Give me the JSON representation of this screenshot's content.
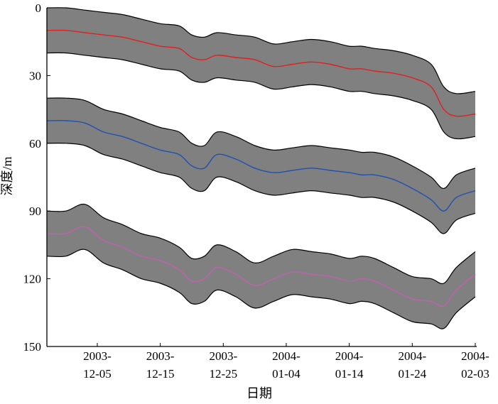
{
  "chart_data": {
    "type": "line",
    "xlabel": "日期",
    "ylabel": "深度/m",
    "ylim": [
      0,
      150
    ],
    "y_inverted": true,
    "yticks": [
      0,
      30,
      60,
      90,
      120,
      150
    ],
    "x_start": "2003-11-27",
    "x_end": "2004-02-03",
    "xticks": [
      {
        "line1": "2003-",
        "line2": "12-05",
        "date": "2003-12-05"
      },
      {
        "line1": "2003-",
        "line2": "12-15",
        "date": "2003-12-15"
      },
      {
        "line1": "2003-",
        "line2": "12-25",
        "date": "2003-12-25"
      },
      {
        "line1": "2004-",
        "line2": "01-04",
        "date": "2004-01-04"
      },
      {
        "line1": "2004-",
        "line2": "01-14",
        "date": "2004-01-14"
      },
      {
        "line1": "2004-",
        "line2": "01-24",
        "date": "2004-01-24"
      },
      {
        "line1": "2004-",
        "line2": "02-03",
        "date": "2004-02-03"
      }
    ],
    "band_halfwidth": 10,
    "band_color": "#808080",
    "band_edge_color": "#000000",
    "x": [
      "2003-11-27",
      "2003-11-30",
      "2003-12-03",
      "2003-12-06",
      "2003-12-09",
      "2003-12-12",
      "2003-12-15",
      "2003-12-18",
      "2003-12-20",
      "2003-12-22",
      "2003-12-24",
      "2003-12-27",
      "2003-12-30",
      "2004-01-02",
      "2004-01-05",
      "2004-01-08",
      "2004-01-11",
      "2004-01-14",
      "2004-01-16",
      "2004-01-18",
      "2004-01-21",
      "2004-01-24",
      "2004-01-27",
      "2004-01-29",
      "2004-01-31",
      "2004-02-03"
    ],
    "series": [
      {
        "color": "#e02020",
        "values": [
          10,
          10,
          11,
          12,
          13,
          15,
          17,
          18,
          22,
          23,
          21,
          22,
          23,
          26,
          25,
          24,
          25,
          27,
          27,
          28,
          29,
          31,
          35,
          45,
          48,
          47
        ]
      },
      {
        "color": "#2050b0",
        "values": [
          50,
          50,
          51,
          55,
          57,
          60,
          63,
          65,
          70,
          71,
          65,
          67,
          71,
          73,
          72,
          71,
          72,
          73,
          74,
          74,
          76,
          80,
          85,
          90,
          84,
          81
        ]
      },
      {
        "color": "#c060b0",
        "values": [
          100,
          100,
          97,
          103,
          106,
          110,
          112,
          116,
          121,
          120,
          115,
          118,
          123,
          120,
          117,
          118,
          119,
          121,
          120,
          121,
          125,
          129,
          130,
          132,
          125,
          118
        ]
      }
    ]
  },
  "colors": {
    "axis": "#000000"
  }
}
